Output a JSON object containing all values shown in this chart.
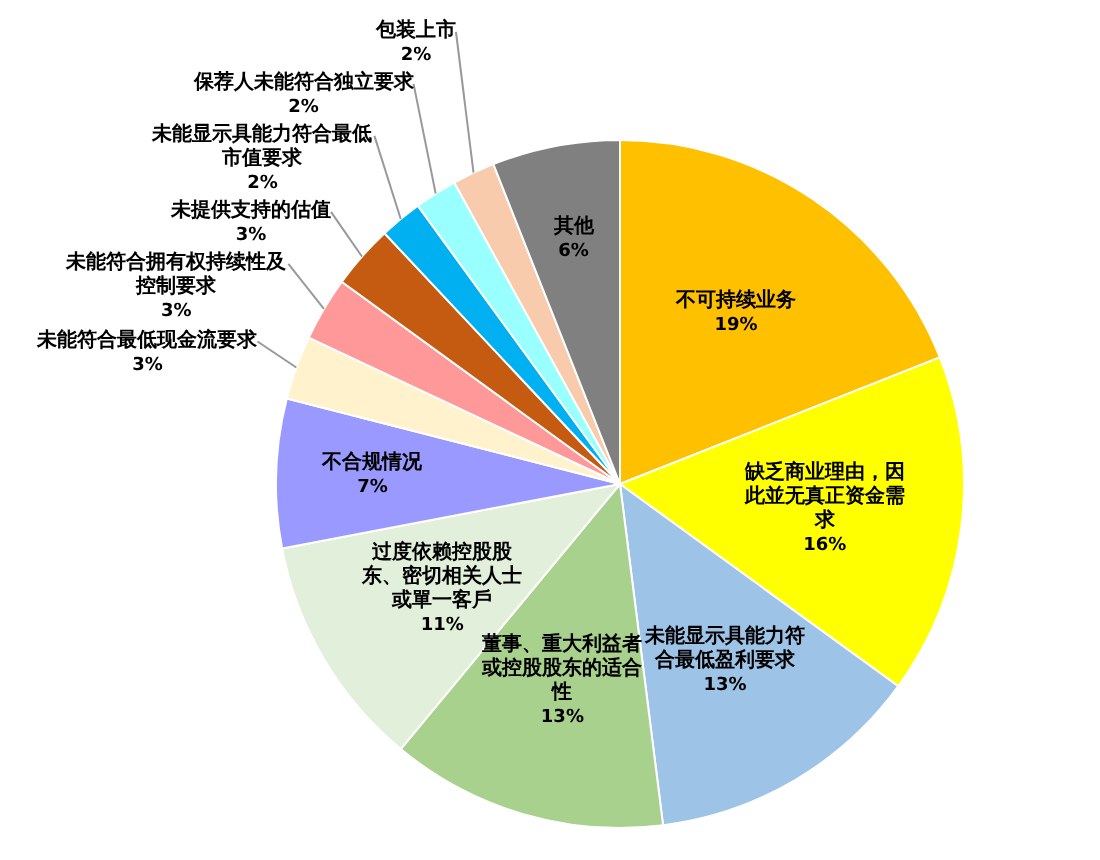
{
  "chart_data": {
    "type": "pie",
    "categories": [
      "不可持续业务",
      "缺乏商业理由，因此並无真正资金需求",
      "未能显示具能力符合最低盈利要求",
      "董事、重大利益者或控股股东的适合性",
      "过度依赖控股股东、密切相关人士或單一客戶",
      "不合规情况",
      "未能符合最低现金流要求",
      "未能符合拥有权持续性及控制要求",
      "未提供支持的估值",
      "未能显示具能力符合最低市值要求",
      "保荐人未能符合独立要求",
      "包装上市",
      "其他"
    ],
    "values": [
      19,
      16,
      13,
      13,
      11,
      7,
      3,
      3,
      3,
      2,
      2,
      2,
      6
    ],
    "value_labels": [
      "19%",
      "16%",
      "13%",
      "13%",
      "11%",
      "7%",
      "3%",
      "3%",
      "3%",
      "2%",
      "2%",
      "2%",
      "6%"
    ],
    "colors": [
      "#ffc000",
      "#ffff00",
      "#9dc3e6",
      "#a9d18e",
      "#e2efda",
      "#9999ff",
      "#fff2cc",
      "#ff9999",
      "#c55a11",
      "#00b0f0",
      "#99ffff",
      "#f8cbad",
      "#808080"
    ]
  }
}
